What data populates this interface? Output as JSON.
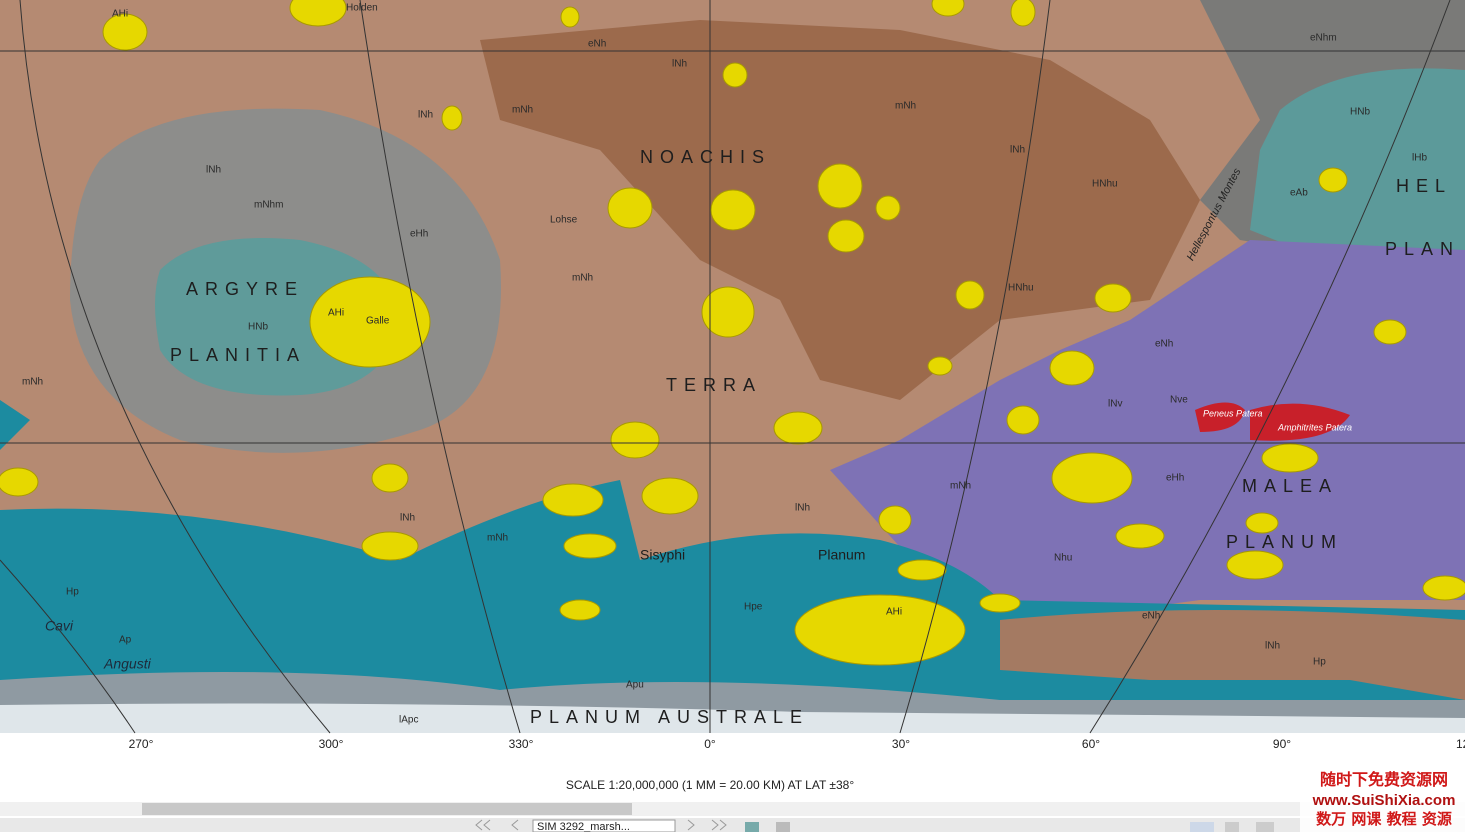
{
  "map": {
    "labels": [
      "AHi",
      "Holden",
      "eNh",
      "lNh",
      "mNh",
      "lNh",
      "NOACHIS",
      "mNh",
      "lNh",
      "mNhm",
      "Lohse",
      "eHh",
      "mNh",
      "ARGYRE",
      "AHi",
      "Galle",
      "HNb",
      "PLANITIA",
      "TERRA",
      "HNhu",
      "HNhu",
      "lNh",
      "HNb",
      "lHb",
      "eAb",
      "HEL",
      "PLAN",
      "eNhm",
      "Hellespontus Montes",
      "eNh",
      "lNv",
      "Nve",
      "Peneus Patera",
      "Amphitrites Patera",
      "eHh",
      "mNh",
      "MALEA",
      "PLANUM",
      "Nhu",
      "lNh",
      "lNh",
      "mNh",
      "Sisyphi",
      "Planum",
      "Hpe",
      "AHi",
      "eNh",
      "lNh",
      "Hp",
      "Hp",
      "Cavi",
      "Ap",
      "Angusti",
      "Apu",
      "lApc",
      "PLANUM AUSTRALE",
      "mNh"
    ],
    "longitudes": [
      "270°",
      "300°",
      "330°",
      "0°",
      "30°",
      "60°",
      "90°",
      "12"
    ],
    "scale": "SCALE 1:20,000,000 (1 MM = 20.00 KM) AT LAT ±38°"
  },
  "toolbar": {
    "file": "SIM 3292_marsh..."
  },
  "watermark": {
    "title": "随时下免费资源网",
    "url": "www.SuiShiXia.com",
    "slogan": "数万 网课 教程 资源"
  }
}
